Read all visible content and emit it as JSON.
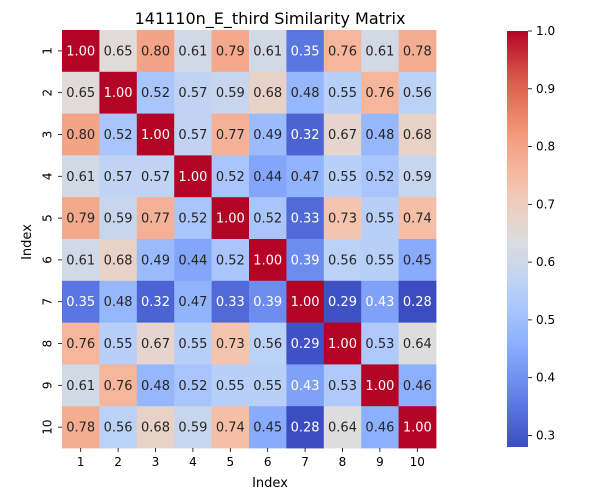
{
  "chart_data": {
    "type": "heatmap",
    "title": "141110n_E_third Similarity Matrix",
    "xlabel": "Index",
    "ylabel": "Index",
    "x_categories": [
      "1",
      "2",
      "3",
      "4",
      "5",
      "6",
      "7",
      "8",
      "9",
      "10"
    ],
    "y_categories": [
      "1",
      "2",
      "3",
      "4",
      "5",
      "6",
      "7",
      "8",
      "9",
      "10"
    ],
    "values": [
      [
        1.0,
        0.65,
        0.8,
        0.61,
        0.79,
        0.61,
        0.35,
        0.76,
        0.61,
        0.78
      ],
      [
        0.65,
        1.0,
        0.52,
        0.57,
        0.59,
        0.68,
        0.48,
        0.55,
        0.76,
        0.56
      ],
      [
        0.8,
        0.52,
        1.0,
        0.57,
        0.77,
        0.49,
        0.32,
        0.67,
        0.48,
        0.68
      ],
      [
        0.61,
        0.57,
        0.57,
        1.0,
        0.52,
        0.44,
        0.47,
        0.55,
        0.52,
        0.59
      ],
      [
        0.79,
        0.59,
        0.77,
        0.52,
        1.0,
        0.52,
        0.33,
        0.73,
        0.55,
        0.74
      ],
      [
        0.61,
        0.68,
        0.49,
        0.44,
        0.52,
        1.0,
        0.39,
        0.56,
        0.55,
        0.45
      ],
      [
        0.35,
        0.48,
        0.32,
        0.47,
        0.33,
        0.39,
        1.0,
        0.29,
        0.43,
        0.28
      ],
      [
        0.76,
        0.55,
        0.67,
        0.55,
        0.73,
        0.56,
        0.29,
        1.0,
        0.53,
        0.64
      ],
      [
        0.61,
        0.76,
        0.48,
        0.52,
        0.55,
        0.55,
        0.43,
        0.53,
        1.0,
        0.46
      ],
      [
        0.78,
        0.56,
        0.68,
        0.59,
        0.74,
        0.45,
        0.28,
        0.64,
        0.46,
        1.0
      ]
    ],
    "value_range": [
      0.28,
      1.0
    ],
    "colormap": "coolwarm",
    "colorbar_ticks": [
      "0.3",
      "0.4",
      "0.5",
      "0.6",
      "0.7",
      "0.8",
      "0.9",
      "1.0"
    ],
    "annotations": true
  }
}
